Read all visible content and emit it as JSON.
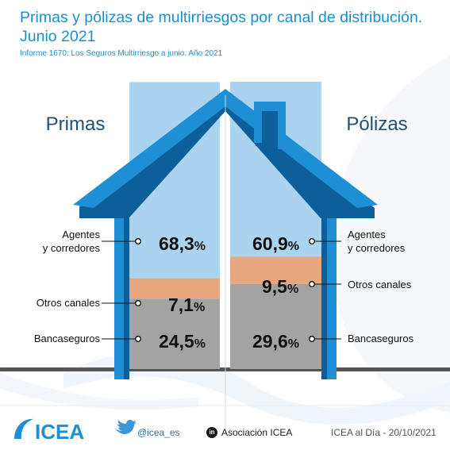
{
  "header": {
    "title_line1": "Primas y pólizas de multirriesgos por canal de distribución.",
    "title_line2": "Junio 2021",
    "subtitle": "Informe 1670: Los Seguros Multirriesgo a junio. Año 2021"
  },
  "colors": {
    "accent": "#1a8fd1",
    "roof": "#1e8fd5",
    "roof_dark": "#0d5f99",
    "agentes": "#a9d3ee",
    "otros": "#e8a77c",
    "banca": "#a3a3a3",
    "ground": "#555555"
  },
  "chart_data": {
    "type": "stacked-bar",
    "categories": [
      "Primas",
      "Pólizas"
    ],
    "series": [
      {
        "name": "Bancaseguros",
        "values": [
          24.5,
          29.6
        ],
        "labels": [
          "24,5",
          "29,6"
        ]
      },
      {
        "name": "Otros canales",
        "values": [
          7.1,
          9.5
        ],
        "labels": [
          "7,1",
          "9,5"
        ]
      },
      {
        "name": "Agentes y corredores",
        "values": [
          68.3,
          60.9
        ],
        "labels": [
          "68,3",
          "60,9"
        ]
      }
    ],
    "value_suffix": "%",
    "channel_labels": {
      "agentes_line1": "Agentes",
      "agentes_line2": "y corredores",
      "otros": "Otros canales",
      "banca": "Bancaseguros"
    }
  },
  "footer": {
    "logo_text": "ICEA",
    "twitter": "@icea_es",
    "linkedin": "Asociación ICEA",
    "linkedin_glyph": "in",
    "date_note": "ICEA al Día - 20/10/2021"
  }
}
